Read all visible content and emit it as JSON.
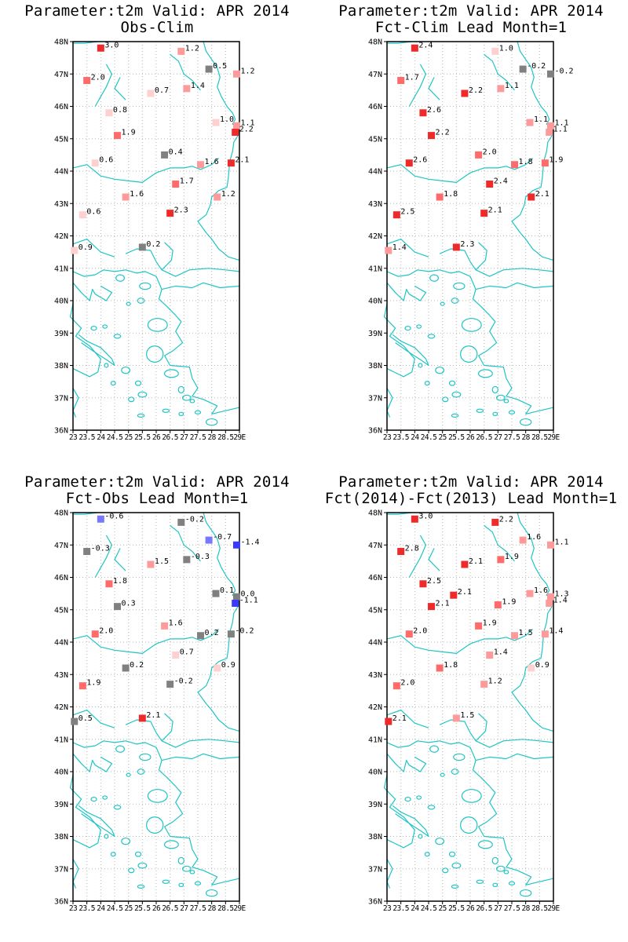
{
  "axes": {
    "lat_ticks": [
      "48N",
      "47N",
      "46N",
      "45N",
      "44N",
      "43N",
      "42N",
      "41N",
      "40N",
      "39N",
      "38N",
      "37N",
      "36N"
    ],
    "lon_ticks": [
      "23",
      "23.5",
      "24",
      "24.5",
      "25",
      "25.5",
      "26",
      "26.5",
      "27",
      "27.5",
      "28",
      "28.5",
      "29E"
    ],
    "lat_range": [
      36,
      48
    ],
    "lon_range": [
      23,
      29
    ]
  },
  "colors": {
    "coast": "#1fc5c5",
    "grid": "#b8b8b8",
    "frame": "#000000",
    "scale": [
      "#3a3aff",
      "#7777ff",
      "#aaaaff",
      "#d0d0ff",
      "#808080",
      "#ffd0d0",
      "#ff9a9a",
      "#ff6a6a",
      "#ee2a2a"
    ]
  },
  "panels": [
    {
      "title_line1": "Parameter:t2m Valid: APR 2014",
      "title_line2": "Obs-Clim",
      "stations": [
        {
          "lon": 24.0,
          "lat": 47.8,
          "value": 3.0,
          "label": "3.0"
        },
        {
          "lon": 26.9,
          "lat": 47.7,
          "value": 1.2,
          "label": "1.2"
        },
        {
          "lon": 27.9,
          "lat": 47.15,
          "value": 0.5,
          "label": "0.5"
        },
        {
          "lon": 28.9,
          "lat": 47.0,
          "value": 1.2,
          "label": "1.2"
        },
        {
          "lon": 23.5,
          "lat": 46.8,
          "value": 2.0,
          "label": "2.0"
        },
        {
          "lon": 25.8,
          "lat": 46.4,
          "value": 0.7,
          "label": "0.7"
        },
        {
          "lon": 27.1,
          "lat": 46.55,
          "value": 1.4,
          "label": "1.4"
        },
        {
          "lon": 24.3,
          "lat": 45.8,
          "value": 0.8,
          "label": "0.8"
        },
        {
          "lon": 28.15,
          "lat": 45.5,
          "value": 1.0,
          "label": "1.0"
        },
        {
          "lon": 28.9,
          "lat": 45.4,
          "value": 1.1,
          "label": "1.1"
        },
        {
          "lon": 28.85,
          "lat": 45.2,
          "value": 2.2,
          "label": "2.2"
        },
        {
          "lon": 24.6,
          "lat": 45.1,
          "value": 1.9,
          "label": "1.9"
        },
        {
          "lon": 26.3,
          "lat": 44.5,
          "value": 0.4,
          "label": "0.4"
        },
        {
          "lon": 23.8,
          "lat": 44.25,
          "value": 0.6,
          "label": "0.6"
        },
        {
          "lon": 27.6,
          "lat": 44.2,
          "value": 1.6,
          "label": "1.6"
        },
        {
          "lon": 28.7,
          "lat": 44.25,
          "value": 2.1,
          "label": "2.1"
        },
        {
          "lon": 26.7,
          "lat": 43.6,
          "value": 1.7,
          "label": "1.7"
        },
        {
          "lon": 24.9,
          "lat": 43.2,
          "value": 1.6,
          "label": "1.6"
        },
        {
          "lon": 28.2,
          "lat": 43.2,
          "value": 1.2,
          "label": "1.2"
        },
        {
          "lon": 23.35,
          "lat": 42.65,
          "value": 0.6,
          "label": "0.6"
        },
        {
          "lon": 26.5,
          "lat": 42.7,
          "value": 2.3,
          "label": "2.3"
        },
        {
          "lon": 25.5,
          "lat": 41.65,
          "value": 0.2,
          "label": "0.2"
        },
        {
          "lon": 23.05,
          "lat": 41.55,
          "value": 0.9,
          "label": "0.9"
        }
      ]
    },
    {
      "title_line1": "Parameter:t2m Valid: APR 2014",
      "title_line2": "Fct-Clim Lead Month=1",
      "stations": [
        {
          "lon": 24.0,
          "lat": 47.8,
          "value": 2.4,
          "label": "2.4"
        },
        {
          "lon": 26.9,
          "lat": 47.7,
          "value": 1.0,
          "label": "1.0"
        },
        {
          "lon": 27.9,
          "lat": 47.15,
          "value": -0.2,
          "label": "-0.2"
        },
        {
          "lon": 28.9,
          "lat": 47.0,
          "value": -0.2,
          "label": "-0.2"
        },
        {
          "lon": 23.5,
          "lat": 46.8,
          "value": 1.7,
          "label": "1.7"
        },
        {
          "lon": 25.8,
          "lat": 46.4,
          "value": 2.2,
          "label": "2.2"
        },
        {
          "lon": 27.1,
          "lat": 46.55,
          "value": 1.1,
          "label": "1.1"
        },
        {
          "lon": 24.3,
          "lat": 45.8,
          "value": 2.6,
          "label": "2.6"
        },
        {
          "lon": 28.15,
          "lat": 45.5,
          "value": 1.1,
          "label": "1.1"
        },
        {
          "lon": 28.9,
          "lat": 45.4,
          "value": 1.1,
          "label": "1.1"
        },
        {
          "lon": 28.85,
          "lat": 45.2,
          "value": 1.1,
          "label": "1.1"
        },
        {
          "lon": 24.6,
          "lat": 45.1,
          "value": 2.2,
          "label": "2.2"
        },
        {
          "lon": 26.3,
          "lat": 44.5,
          "value": 2.0,
          "label": "2.0"
        },
        {
          "lon": 23.8,
          "lat": 44.25,
          "value": 2.6,
          "label": "2.6"
        },
        {
          "lon": 27.6,
          "lat": 44.2,
          "value": 1.8,
          "label": "1.8"
        },
        {
          "lon": 28.7,
          "lat": 44.25,
          "value": 1.9,
          "label": "1.9"
        },
        {
          "lon": 26.7,
          "lat": 43.6,
          "value": 2.4,
          "label": "2.4"
        },
        {
          "lon": 24.9,
          "lat": 43.2,
          "value": 1.8,
          "label": "1.8"
        },
        {
          "lon": 28.2,
          "lat": 43.2,
          "value": 2.1,
          "label": "2.1"
        },
        {
          "lon": 23.35,
          "lat": 42.65,
          "value": 2.5,
          "label": "2.5"
        },
        {
          "lon": 26.5,
          "lat": 42.7,
          "value": 2.1,
          "label": "2.1"
        },
        {
          "lon": 25.5,
          "lat": 41.65,
          "value": 2.3,
          "label": "2.3"
        },
        {
          "lon": 23.05,
          "lat": 41.55,
          "value": 1.4,
          "label": "1.4"
        }
      ]
    },
    {
      "title_line1": "Parameter:t2m Valid: APR 2014",
      "title_line2": "Fct-Obs Lead Month=1",
      "stations": [
        {
          "lon": 24.0,
          "lat": 47.8,
          "value": -0.6,
          "label": "-0.6"
        },
        {
          "lon": 26.9,
          "lat": 47.7,
          "value": -0.2,
          "label": "-0.2"
        },
        {
          "lon": 27.9,
          "lat": 47.15,
          "value": -0.7,
          "label": "-0.7"
        },
        {
          "lon": 28.9,
          "lat": 47.0,
          "value": -1.4,
          "label": "-1.4"
        },
        {
          "lon": 23.5,
          "lat": 46.8,
          "value": -0.3,
          "label": "-0.3"
        },
        {
          "lon": 25.8,
          "lat": 46.4,
          "value": 1.5,
          "label": "1.5"
        },
        {
          "lon": 27.1,
          "lat": 46.55,
          "value": -0.3,
          "label": "-0.3"
        },
        {
          "lon": 24.3,
          "lat": 45.8,
          "value": 1.8,
          "label": "1.8"
        },
        {
          "lon": 28.15,
          "lat": 45.5,
          "value": 0.1,
          "label": "0.1"
        },
        {
          "lon": 28.9,
          "lat": 45.4,
          "value": 0.0,
          "label": "0.0"
        },
        {
          "lon": 28.85,
          "lat": 45.2,
          "value": -1.1,
          "label": "-1.1"
        },
        {
          "lon": 24.6,
          "lat": 45.1,
          "value": 0.3,
          "label": "0.3"
        },
        {
          "lon": 26.3,
          "lat": 44.5,
          "value": 1.6,
          "label": "1.6"
        },
        {
          "lon": 23.8,
          "lat": 44.25,
          "value": 2.0,
          "label": "2.0"
        },
        {
          "lon": 27.6,
          "lat": 44.2,
          "value": 0.2,
          "label": "0.2"
        },
        {
          "lon": 28.7,
          "lat": 44.25,
          "value": -0.2,
          "label": "-0.2"
        },
        {
          "lon": 26.7,
          "lat": 43.6,
          "value": 0.7,
          "label": "0.7"
        },
        {
          "lon": 24.9,
          "lat": 43.2,
          "value": 0.2,
          "label": "0.2"
        },
        {
          "lon": 28.2,
          "lat": 43.2,
          "value": 0.9,
          "label": "0.9"
        },
        {
          "lon": 23.35,
          "lat": 42.65,
          "value": 1.9,
          "label": "1.9"
        },
        {
          "lon": 26.5,
          "lat": 42.7,
          "value": -0.2,
          "label": "-0.2"
        },
        {
          "lon": 25.5,
          "lat": 41.65,
          "value": 2.1,
          "label": "2.1"
        },
        {
          "lon": 23.05,
          "lat": 41.55,
          "value": 0.5,
          "label": "0.5"
        }
      ]
    },
    {
      "title_line1": "Parameter:t2m Valid: APR 2014",
      "title_line2": "Fct(2014)-Fct(2013) Lead Month=1",
      "stations": [
        {
          "lon": 24.0,
          "lat": 47.8,
          "value": 3.0,
          "label": "3.0"
        },
        {
          "lon": 26.9,
          "lat": 47.7,
          "value": 2.2,
          "label": "2.2"
        },
        {
          "lon": 27.9,
          "lat": 47.15,
          "value": 1.6,
          "label": "1.6"
        },
        {
          "lon": 28.9,
          "lat": 47.0,
          "value": 1.1,
          "label": "1.1"
        },
        {
          "lon": 23.5,
          "lat": 46.8,
          "value": 2.8,
          "label": "2.8"
        },
        {
          "lon": 25.8,
          "lat": 46.4,
          "value": 2.1,
          "label": "2.1"
        },
        {
          "lon": 27.1,
          "lat": 46.55,
          "value": 1.9,
          "label": "1.9"
        },
        {
          "lon": 24.3,
          "lat": 45.8,
          "value": 2.5,
          "label": "2.5"
        },
        {
          "lon": 28.15,
          "lat": 45.5,
          "value": 1.6,
          "label": "1.6"
        },
        {
          "lon": 28.9,
          "lat": 45.4,
          "value": 1.3,
          "label": "1.3"
        },
        {
          "lon": 28.85,
          "lat": 45.2,
          "value": 1.4,
          "label": "1.4"
        },
        {
          "lon": 25.4,
          "lat": 45.45,
          "value": 2.1,
          "label": "2.1"
        },
        {
          "lon": 24.6,
          "lat": 45.1,
          "value": 2.1,
          "label": "2.1"
        },
        {
          "lon": 27.0,
          "lat": 45.15,
          "value": 1.9,
          "label": "1.9"
        },
        {
          "lon": 26.3,
          "lat": 44.5,
          "value": 1.9,
          "label": "1.9"
        },
        {
          "lon": 23.8,
          "lat": 44.25,
          "value": 2.0,
          "label": "2.0"
        },
        {
          "lon": 27.6,
          "lat": 44.2,
          "value": 1.5,
          "label": "1.5"
        },
        {
          "lon": 28.7,
          "lat": 44.25,
          "value": 1.4,
          "label": "1.4"
        },
        {
          "lon": 26.7,
          "lat": 43.6,
          "value": 1.4,
          "label": "1.4"
        },
        {
          "lon": 24.9,
          "lat": 43.2,
          "value": 1.8,
          "label": "1.8"
        },
        {
          "lon": 28.2,
          "lat": 43.2,
          "value": 0.9,
          "label": "0.9"
        },
        {
          "lon": 23.35,
          "lat": 42.65,
          "value": 2.0,
          "label": "2.0"
        },
        {
          "lon": 26.5,
          "lat": 42.7,
          "value": 1.2,
          "label": "1.2"
        },
        {
          "lon": 25.5,
          "lat": 41.65,
          "value": 1.5,
          "label": "1.5"
        },
        {
          "lon": 23.05,
          "lat": 41.55,
          "value": 2.1,
          "label": "2.1"
        }
      ]
    }
  ]
}
